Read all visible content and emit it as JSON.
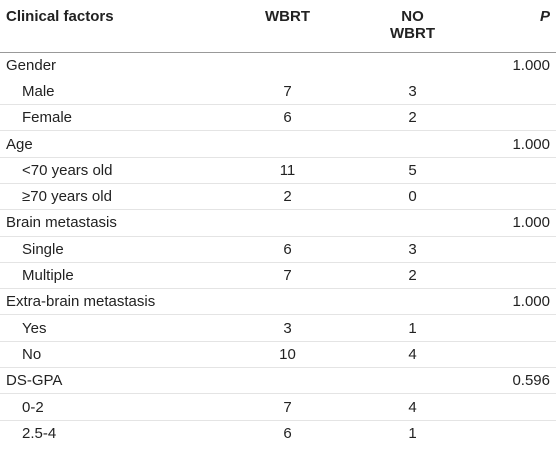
{
  "table": {
    "header": [
      "Clinical factors",
      "WBRT",
      "NO WBRT",
      "P"
    ],
    "rows": [
      {
        "label": "Gender",
        "p": "1.000"
      },
      {
        "label": "Male",
        "wbrt": 7,
        "no_wbrt": 3,
        "sub": true
      },
      {
        "label": "Female",
        "wbrt": 6,
        "no_wbrt": 2,
        "sub": true
      },
      {
        "label": "Age",
        "p": "1.000"
      },
      {
        "label": "<70 years old",
        "wbrt": 11,
        "no_wbrt": 5,
        "sub": true
      },
      {
        "label": "≥70 years old",
        "wbrt": 2,
        "no_wbrt": 0,
        "sub": true
      },
      {
        "label": "Brain metastasis",
        "p": "1.000"
      },
      {
        "label": "Single",
        "wbrt": 6,
        "no_wbrt": 3,
        "sub": true
      },
      {
        "label": "Multiple",
        "wbrt": 7,
        "no_wbrt": 2,
        "sub": true
      },
      {
        "label": "Extra-brain metastasis",
        "p": "1.000"
      },
      {
        "label": "Yes",
        "wbrt": 3,
        "no_wbrt": 1,
        "sub": true
      },
      {
        "label": "No",
        "wbrt": 10,
        "no_wbrt": 4,
        "sub": true
      },
      {
        "label": "DS-GPA",
        "p": "0.596"
      },
      {
        "label": "0-2",
        "wbrt": 7,
        "no_wbrt": 4,
        "sub": true
      },
      {
        "label": "2.5-4",
        "wbrt": 6,
        "no_wbrt": 1,
        "sub": true
      }
    ]
  }
}
